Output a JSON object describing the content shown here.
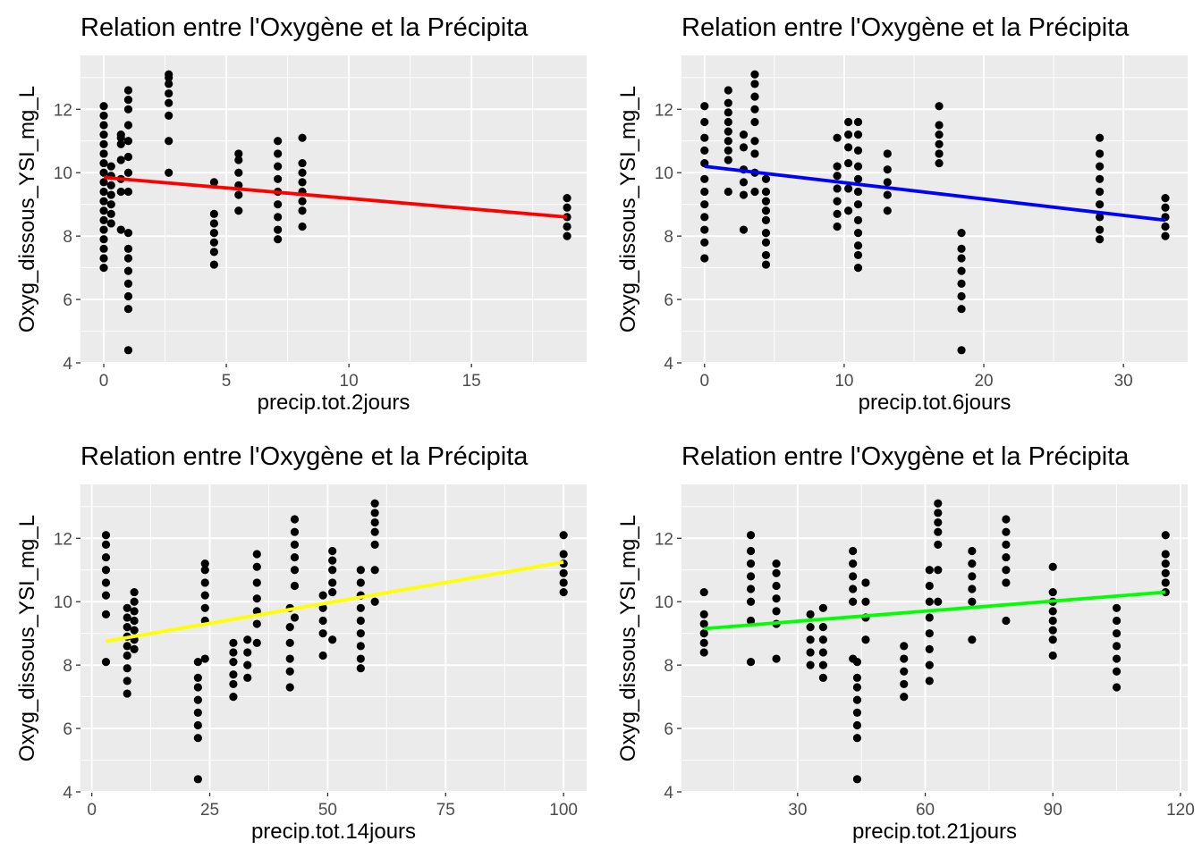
{
  "chart_data": [
    {
      "type": "scatter",
      "title": "Relation entre l'Oxygène et la Précipita",
      "xlabel": "precip.tot.2jours",
      "ylabel": "Oxyg_dissous_YSI_mg_L",
      "xlim": [
        -0.95,
        19.7
      ],
      "ylim": [
        4,
        13.7
      ],
      "xticks": [
        0,
        5,
        10,
        15
      ],
      "yticks": [
        4,
        6,
        8,
        10,
        12
      ],
      "fit": {
        "x": [
          0,
          18.9
        ],
        "y": [
          9.85,
          8.6
        ],
        "color": "#ff0000"
      },
      "series": [
        {
          "x": 0,
          "y": [
            7.0,
            7.3,
            7.6,
            7.9,
            8.2,
            8.5,
            8.8,
            9.1,
            9.4,
            9.7,
            10.0,
            10.3,
            10.6,
            10.9,
            11.2,
            11.5,
            11.8,
            12.1
          ]
        },
        {
          "x": 0.3,
          "y": [
            8.4,
            8.7,
            9.0,
            9.3,
            9.6,
            9.9,
            10.2
          ]
        },
        {
          "x": 0.7,
          "y": [
            8.2,
            9.4,
            9.8,
            10.4,
            10.9,
            11.1,
            11.2
          ]
        },
        {
          "x": 1.0,
          "y": [
            4.4,
            5.7,
            6.1,
            6.5,
            6.9,
            7.3,
            7.6,
            8.1,
            9.4,
            10.0,
            10.5,
            11.0,
            11.5,
            12.0,
            12.3,
            12.6
          ]
        },
        {
          "x": 2.65,
          "y": [
            10.0,
            11.0,
            11.8,
            12.2,
            12.5,
            12.8,
            13.0,
            13.1
          ]
        },
        {
          "x": 4.5,
          "y": [
            7.1,
            7.5,
            7.8,
            8.1,
            8.4,
            8.7,
            9.7
          ]
        },
        {
          "x": 5.5,
          "y": [
            8.8,
            9.3,
            9.6,
            10.0,
            10.4,
            10.6
          ]
        },
        {
          "x": 7.1,
          "y": [
            7.9,
            8.2,
            8.6,
            9.0,
            9.4,
            9.8,
            10.2,
            10.6,
            11.0
          ]
        },
        {
          "x": 8.1,
          "y": [
            8.3,
            8.8,
            9.1,
            9.4,
            9.7,
            10.0,
            10.3,
            11.1
          ]
        },
        {
          "x": 18.9,
          "y": [
            8.0,
            8.3,
            8.6,
            8.9,
            9.2
          ]
        }
      ]
    },
    {
      "type": "scatter",
      "title": "Relation entre l'Oxygène et la Précipita",
      "xlabel": "precip.tot.6jours",
      "ylabel": "Oxyg_dissous_YSI_mg_L",
      "xlim": [
        -1.65,
        34.6
      ],
      "ylim": [
        4,
        13.7
      ],
      "xticks": [
        0,
        10,
        20,
        30
      ],
      "yticks": [
        4,
        6,
        8,
        10,
        12
      ],
      "fit": {
        "x": [
          0,
          33
        ],
        "y": [
          10.2,
          8.5
        ],
        "color": "#0000ff"
      },
      "series": [
        {
          "x": 0,
          "y": [
            7.3,
            7.8,
            8.2,
            8.6,
            9.0,
            9.4,
            9.8,
            10.3,
            10.7,
            11.1,
            11.6,
            12.1
          ]
        },
        {
          "x": 1.7,
          "y": [
            9.4,
            10.4,
            10.7,
            11.0,
            11.3,
            11.6,
            11.9,
            12.2,
            12.6
          ]
        },
        {
          "x": 2.8,
          "y": [
            8.2,
            9.3,
            9.7,
            10.1,
            10.8,
            11.2
          ]
        },
        {
          "x": 3.6,
          "y": [
            9.4,
            10.0,
            10.6,
            11.0,
            11.6,
            12.0,
            12.4,
            12.8,
            13.1
          ]
        },
        {
          "x": 4.4,
          "y": [
            7.1,
            7.4,
            7.8,
            8.1,
            8.5,
            8.8,
            9.1,
            9.4,
            9.8
          ]
        },
        {
          "x": 9.5,
          "y": [
            8.3,
            8.7,
            9.1,
            9.5,
            9.9,
            10.2,
            11.1
          ]
        },
        {
          "x": 10.3,
          "y": [
            8.8,
            9.5,
            10.3,
            10.8,
            11.2,
            11.6
          ]
        },
        {
          "x": 11.0,
          "y": [
            7.0,
            7.4,
            7.7,
            8.1,
            8.5,
            9.0,
            9.4,
            9.8,
            10.2,
            10.7,
            11.2,
            11.6
          ]
        },
        {
          "x": 13.1,
          "y": [
            8.8,
            9.3,
            9.7,
            10.1,
            10.6
          ]
        },
        {
          "x": 16.8,
          "y": [
            10.3,
            10.6,
            10.9,
            11.2,
            11.5,
            12.1
          ]
        },
        {
          "x": 18.4,
          "y": [
            4.4,
            5.7,
            6.1,
            6.5,
            6.9,
            7.3,
            7.6,
            8.1
          ]
        },
        {
          "x": 28.3,
          "y": [
            7.9,
            8.2,
            8.6,
            9.0,
            9.4,
            9.8,
            10.2,
            10.6,
            11.1
          ]
        },
        {
          "x": 33,
          "y": [
            8.0,
            8.3,
            8.6,
            8.9,
            9.2
          ]
        }
      ]
    },
    {
      "type": "scatter",
      "title": "Relation entre l'Oxygène et la Précipita",
      "xlabel": "precip.tot.14jours",
      "ylabel": "Oxyg_dissous_YSI_mg_L",
      "xlim": [
        -2.4,
        104.9
      ],
      "ylim": [
        4,
        13.7
      ],
      "xticks": [
        0,
        25,
        50,
        75,
        100
      ],
      "yticks": [
        4,
        6,
        8,
        10,
        12
      ],
      "fit": {
        "x": [
          3,
          100
        ],
        "y": [
          8.75,
          11.25
        ],
        "color": "#ffff00"
      },
      "series": [
        {
          "x": 3,
          "y": [
            8.1,
            9.6,
            10.2,
            10.6,
            11.0,
            11.4,
            11.8,
            12.1
          ]
        },
        {
          "x": 7.5,
          "y": [
            7.1,
            7.5,
            7.9,
            8.3,
            8.6,
            8.9,
            9.2,
            9.5,
            9.8
          ]
        },
        {
          "x": 9,
          "y": [
            8.5,
            8.8,
            9.1,
            9.4,
            9.7,
            10.0,
            10.3
          ]
        },
        {
          "x": 22.5,
          "y": [
            4.4,
            5.7,
            6.1,
            6.5,
            6.9,
            7.3,
            7.6,
            8.1
          ]
        },
        {
          "x": 24,
          "y": [
            8.2,
            9.4,
            9.8,
            10.2,
            10.6,
            11.0,
            11.2
          ]
        },
        {
          "x": 30,
          "y": [
            7.0,
            7.4,
            7.7,
            8.1,
            8.4,
            8.7
          ]
        },
        {
          "x": 33,
          "y": [
            7.6,
            8.0,
            8.4,
            8.8
          ]
        },
        {
          "x": 35,
          "y": [
            8.7,
            9.3,
            9.7,
            10.1,
            10.6,
            11.1,
            11.5
          ]
        },
        {
          "x": 42,
          "y": [
            7.3,
            7.8,
            8.2,
            8.7,
            9.2,
            9.8
          ]
        },
        {
          "x": 43,
          "y": [
            9.5,
            10.5,
            11.0,
            11.4,
            11.8,
            12.2,
            12.6
          ]
        },
        {
          "x": 49,
          "y": [
            8.3,
            9.0,
            9.4,
            9.8,
            10.2
          ]
        },
        {
          "x": 51,
          "y": [
            8.8,
            10.3,
            10.6,
            11.0,
            11.3,
            11.6
          ]
        },
        {
          "x": 57,
          "y": [
            7.9,
            8.2,
            8.6,
            9.0,
            9.4,
            9.8,
            10.2,
            10.6,
            11.0
          ]
        },
        {
          "x": 60,
          "y": [
            10.0,
            11.0,
            11.8,
            12.2,
            12.5,
            12.8,
            13.1
          ]
        },
        {
          "x": 100,
          "y": [
            10.3,
            10.6,
            10.9,
            11.2,
            11.5,
            12.1
          ]
        }
      ]
    },
    {
      "type": "scatter",
      "title": "Relation entre l'Oxygène et la Précipita",
      "xlabel": "precip.tot.21jours",
      "ylabel": "Oxyg_dissous_YSI_mg_L",
      "xlim": [
        2.7,
        121.7
      ],
      "ylim": [
        4,
        13.7
      ],
      "xticks": [
        30,
        60,
        90,
        120
      ],
      "yticks": [
        4,
        6,
        8,
        10,
        12
      ],
      "fit": {
        "x": [
          8,
          116.5
        ],
        "y": [
          9.15,
          10.3
        ],
        "color": "#00ff00"
      },
      "series": [
        {
          "x": 8,
          "y": [
            8.4,
            8.7,
            9.0,
            9.3,
            9.6,
            10.3
          ]
        },
        {
          "x": 19,
          "y": [
            8.1,
            9.4,
            10.0,
            10.4,
            10.8,
            11.2,
            11.6,
            12.1
          ]
        },
        {
          "x": 25,
          "y": [
            8.2,
            9.3,
            9.7,
            10.1,
            10.5,
            10.9,
            11.2
          ]
        },
        {
          "x": 33,
          "y": [
            8.0,
            8.4,
            8.8,
            9.2,
            9.6
          ]
        },
        {
          "x": 36,
          "y": [
            7.6,
            8.0,
            8.4,
            8.8,
            9.2,
            9.8
          ]
        },
        {
          "x": 43,
          "y": [
            8.2,
            10.0,
            10.4,
            10.8,
            11.2,
            11.6
          ]
        },
        {
          "x": 44,
          "y": [
            4.4,
            5.7,
            6.1,
            6.5,
            6.9,
            7.3,
            7.6,
            8.1
          ]
        },
        {
          "x": 46,
          "y": [
            8.8,
            9.5,
            10.0,
            10.6
          ]
        },
        {
          "x": 55,
          "y": [
            7.0,
            7.4,
            7.8,
            8.2,
            8.6
          ]
        },
        {
          "x": 61,
          "y": [
            7.5,
            8.0,
            8.5,
            9.0,
            9.5,
            10.0,
            10.5,
            11.0
          ]
        },
        {
          "x": 63,
          "y": [
            10.0,
            11.0,
            11.8,
            12.2,
            12.5,
            12.8,
            13.1
          ]
        },
        {
          "x": 71,
          "y": [
            8.8,
            10.0,
            10.4,
            10.8,
            11.2,
            11.6
          ]
        },
        {
          "x": 79,
          "y": [
            9.4,
            10.6,
            11.0,
            11.4,
            11.8,
            12.2,
            12.6
          ]
        },
        {
          "x": 90,
          "y": [
            8.3,
            8.8,
            9.1,
            9.4,
            9.7,
            10.0,
            10.3,
            11.1
          ]
        },
        {
          "x": 105,
          "y": [
            7.3,
            7.8,
            8.2,
            8.6,
            9.0,
            9.4,
            9.8
          ]
        },
        {
          "x": 116.5,
          "y": [
            10.3,
            10.6,
            10.9,
            11.2,
            11.5,
            12.1
          ]
        }
      ]
    }
  ]
}
